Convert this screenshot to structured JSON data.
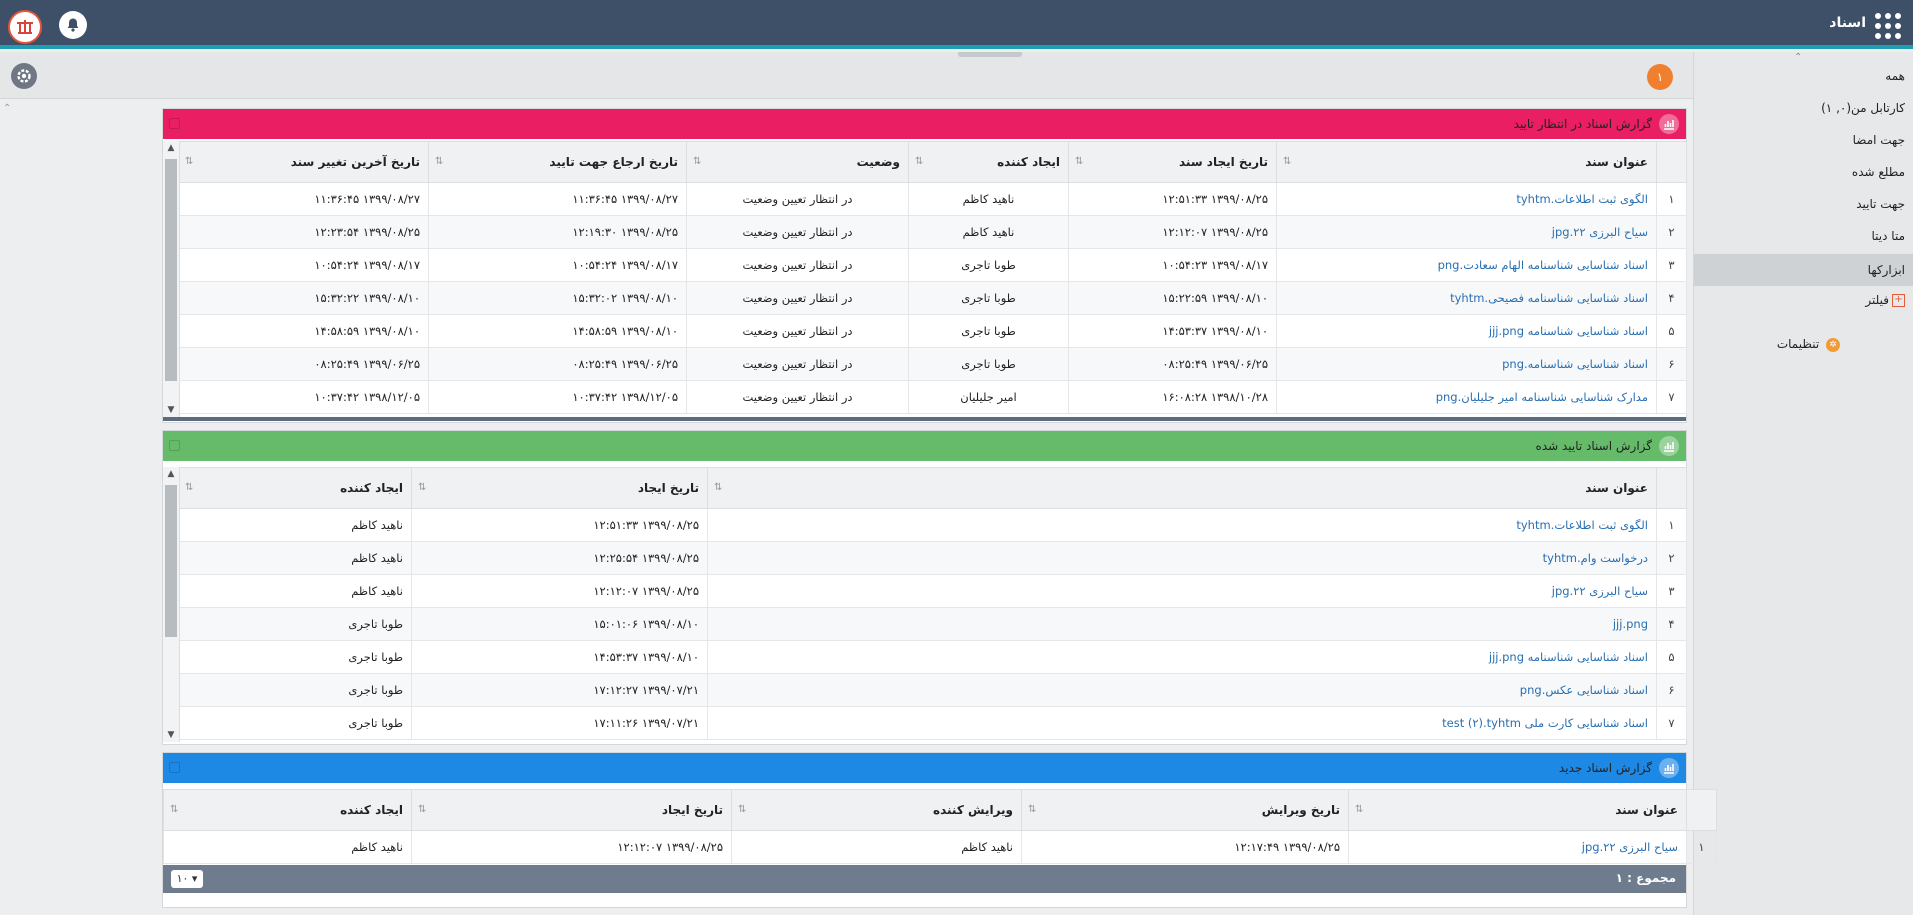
{
  "app": {
    "title": "اسناد",
    "icons": {
      "apps": "apps-grid-icon",
      "bell": "bell-icon",
      "logo": "company-logo",
      "gear": "gear-icon"
    },
    "accent": "#1e9fb1",
    "topbar_color": "#3e5068"
  },
  "toolstrip": {
    "badge": "۱"
  },
  "sidebar": {
    "collapse_glyph": "⌃",
    "items": [
      {
        "label": "همه"
      },
      {
        "label": "کارتابل من(۰, ۱)"
      },
      {
        "label": "جهت امضا"
      },
      {
        "label": "مطلع شده"
      },
      {
        "label": "جهت تایید"
      },
      {
        "label": "متا دیتا"
      },
      {
        "label": "ابزارکها"
      },
      {
        "label": "فیلتر"
      }
    ],
    "filter_icon": "+",
    "settings_label": "تنظیمات"
  },
  "left_caret": "⌃",
  "panels": [
    {
      "title": "گزارش اسناد در انتظار تایید",
      "color": "#e91e63",
      "columns": [
        "عنوان سند",
        "تاریخ ایجاد سند",
        "ایجاد کننده",
        "وضعیت",
        "تاریخ ارجاع جهت تایید",
        "تاریخ آخرین تغییر سند"
      ],
      "rows": [
        [
          "۱",
          "الگوی ثبت اطلاعات.tyhtm",
          "۱۳۹۹/۰۸/۲۵ ۱۲:۵۱:۳۳",
          "ناهید کاظم",
          "در انتظار تعیین وضعیت",
          "۱۳۹۹/۰۸/۲۷ ۱۱:۳۶:۴۵",
          "۱۳۹۹/۰۸/۲۷ ۱۱:۳۶:۴۵"
        ],
        [
          "۲",
          "سیاح البرزی ۲۲.jpg",
          "۱۳۹۹/۰۸/۲۵ ۱۲:۱۲:۰۷",
          "ناهید کاظم",
          "در انتظار تعیین وضعیت",
          "۱۳۹۹/۰۸/۲۵ ۱۲:۱۹:۳۰",
          "۱۳۹۹/۰۸/۲۵ ۱۲:۲۳:۵۴"
        ],
        [
          "۳",
          "اسناد شناسایی شناسنامه الهام سعادت.png",
          "۱۳۹۹/۰۸/۱۷ ۱۰:۵۴:۲۳",
          "طوبا تاجری",
          "در انتظار تعیین وضعیت",
          "۱۳۹۹/۰۸/۱۷ ۱۰:۵۴:۲۴",
          "۱۳۹۹/۰۸/۱۷ ۱۰:۵۴:۲۴"
        ],
        [
          "۴",
          "اسناد شناسایی شناسنامه فصیحی.tyhtm",
          "۱۳۹۹/۰۸/۱۰ ۱۵:۲۲:۵۹",
          "طوبا تاجری",
          "در انتظار تعیین وضعیت",
          "۱۳۹۹/۰۸/۱۰ ۱۵:۳۲:۰۲",
          "۱۳۹۹/۰۸/۱۰ ۱۵:۳۲:۲۲"
        ],
        [
          "۵",
          "اسناد شناسایی شناسنامه jjj.png",
          "۱۳۹۹/۰۸/۱۰ ۱۴:۵۳:۳۷",
          "طوبا تاجری",
          "در انتظار تعیین وضعیت",
          "۱۳۹۹/۰۸/۱۰ ۱۴:۵۸:۵۹",
          "۱۳۹۹/۰۸/۱۰ ۱۴:۵۸:۵۹"
        ],
        [
          "۶",
          "اسناد شناسایی شناسنامه.png",
          "۱۳۹۹/۰۶/۲۵ ۰۸:۲۵:۴۹",
          "طوبا تاجری",
          "در انتظار تعیین وضعیت",
          "۱۳۹۹/۰۶/۲۵ ۰۸:۲۵:۴۹",
          "۱۳۹۹/۰۶/۲۵ ۰۸:۲۵:۴۹"
        ],
        [
          "۷",
          "مدارک شناسایی شناسنامه امیر جلیلیان.png",
          "۱۳۹۸/۱۰/۲۸ ۱۶:۰۸:۲۸",
          "امیر جلیلیان",
          "در انتظار تعیین وضعیت",
          "۱۳۹۸/۱۲/۰۵ ۱۰:۳۷:۴۲",
          "۱۳۹۸/۱۲/۰۵ ۱۰:۳۷:۴۲"
        ]
      ]
    },
    {
      "title": "گزارش اسناد تایید شده",
      "color": "#66bb6a",
      "columns": [
        "عنوان سند",
        "تاریخ ایجاد",
        "ایجاد کننده"
      ],
      "rows": [
        [
          "۱",
          "الگوی ثبت اطلاعات.tyhtm",
          "۱۳۹۹/۰۸/۲۵ ۱۲:۵۱:۳۳",
          "ناهید کاظم"
        ],
        [
          "۲",
          "درخواست وام.tyhtm",
          "۱۳۹۹/۰۸/۲۵ ۱۲:۲۵:۵۴",
          "ناهید کاظم"
        ],
        [
          "۳",
          "سیاح البرزی ۲۲.jpg",
          "۱۳۹۹/۰۸/۲۵ ۱۲:۱۲:۰۷",
          "ناهید کاظم"
        ],
        [
          "۴",
          "jjj.png",
          "۱۳۹۹/۰۸/۱۰ ۱۵:۰۱:۰۶",
          "طوبا تاجری"
        ],
        [
          "۵",
          "اسناد شناسایی شناسنامه jjj.png",
          "۱۳۹۹/۰۸/۱۰ ۱۴:۵۳:۳۷",
          "طوبا تاجری"
        ],
        [
          "۶",
          "اسناد شناسایی عکس.png",
          "۱۳۹۹/۰۷/۲۱ ۱۷:۱۲:۲۷",
          "طوبا تاجری"
        ],
        [
          "۷",
          "اسناد شناسایی کارت ملی test (۲).tyhtm",
          "۱۳۹۹/۰۷/۲۱ ۱۷:۱۱:۲۶",
          "طوبا تاجری"
        ]
      ]
    },
    {
      "title": "گزارش اسناد جدید",
      "color": "#1e88e5",
      "columns": [
        "عنوان سند",
        "تاریخ ویرایش",
        "ویرایش کننده",
        "تاریخ ایجاد",
        "ایجاد کننده"
      ],
      "rows": [
        [
          "۱",
          "سیاح البرزی ۲۲.jpg",
          "۱۳۹۹/۰۸/۲۵ ۱۲:۱۷:۴۹",
          "ناهید کاظم",
          "۱۳۹۹/۰۸/۲۵ ۱۲:۱۲:۰۷",
          "ناهید کاظم"
        ]
      ],
      "footer": {
        "total_label": "مجموع : ۱",
        "page_size": "۱۰ ▾"
      }
    }
  ]
}
